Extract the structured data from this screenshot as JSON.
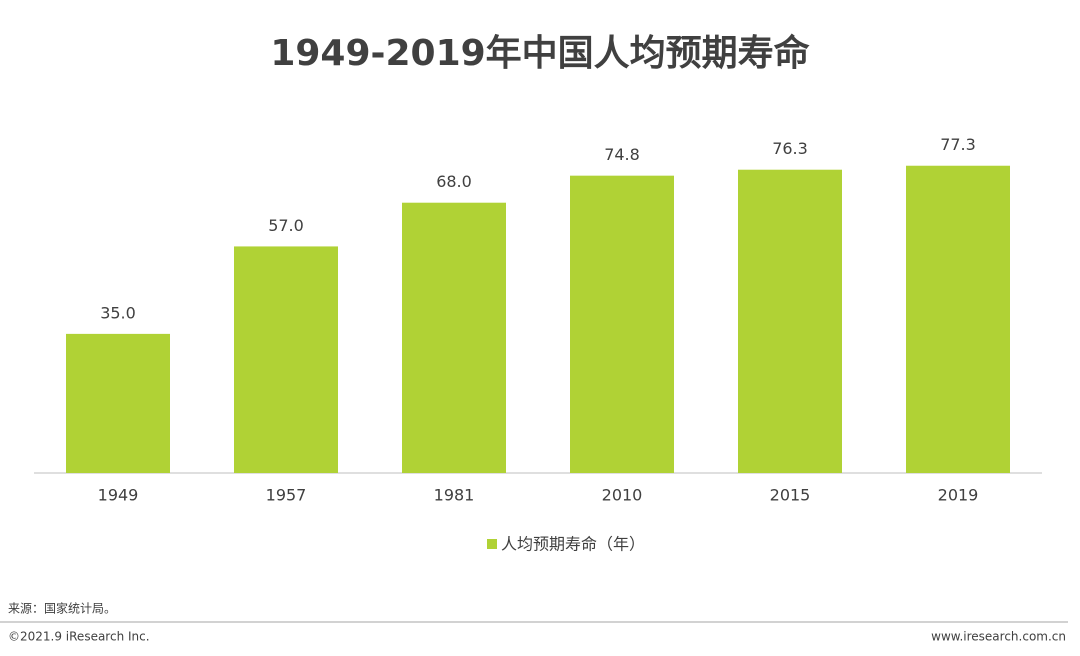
{
  "chart_data": {
    "type": "bar",
    "title": "1949-2019年中国人均预期寿命",
    "categories": [
      "1949",
      "1957",
      "1981",
      "2010",
      "2015",
      "2019"
    ],
    "series": [
      {
        "name": "人均预期寿命（年）",
        "color": "#b0d235",
        "values": [
          35.0,
          57.0,
          68.0,
          74.8,
          76.3,
          77.3
        ],
        "value_labels": [
          "35.0",
          "57.0",
          "68.0",
          "74.8",
          "76.3",
          "77.3"
        ]
      }
    ],
    "ylim": [
      0,
      80
    ]
  },
  "footer": {
    "source": "来源：国家统计局。",
    "copyright": "©2021.9 iResearch Inc.",
    "website": "www.iresearch.com.cn"
  }
}
